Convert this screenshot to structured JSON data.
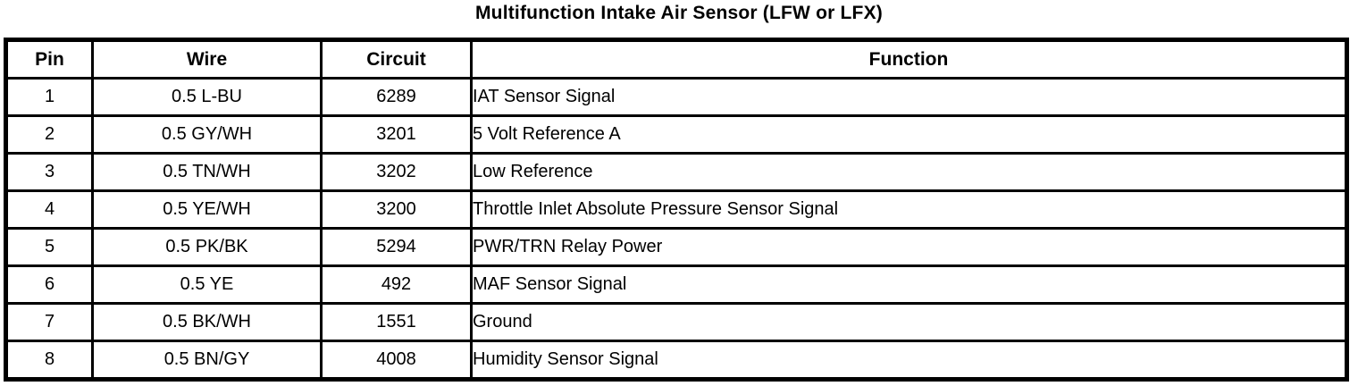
{
  "title": "Multifunction Intake Air Sensor (LFW or LFX)",
  "table": {
    "headers": [
      "Pin",
      "Wire",
      "Circuit",
      "Function"
    ],
    "rows": [
      {
        "pin": "1",
        "wire": "0.5 L-BU",
        "circuit": "6289",
        "function": "IAT Sensor Signal"
      },
      {
        "pin": "2",
        "wire": "0.5 GY/WH",
        "circuit": "3201",
        "function": "5 Volt Reference A"
      },
      {
        "pin": "3",
        "wire": "0.5 TN/WH",
        "circuit": "3202",
        "function": "Low Reference"
      },
      {
        "pin": "4",
        "wire": "0.5 YE/WH",
        "circuit": "3200",
        "function": "Throttle Inlet Absolute Pressure Sensor Signal"
      },
      {
        "pin": "5",
        "wire": "0.5 PK/BK",
        "circuit": "5294",
        "function": "PWR/TRN Relay Power"
      },
      {
        "pin": "6",
        "wire": "0.5 YE",
        "circuit": "492",
        "function": "MAF Sensor Signal"
      },
      {
        "pin": "7",
        "wire": "0.5 BK/WH",
        "circuit": "1551",
        "function": "Ground"
      },
      {
        "pin": "8",
        "wire": "0.5 BN/GY",
        "circuit": "4008",
        "function": "Humidity Sensor Signal"
      }
    ]
  },
  "colors": {
    "text": "#000000",
    "background": "#ffffff",
    "border": "#000000"
  }
}
